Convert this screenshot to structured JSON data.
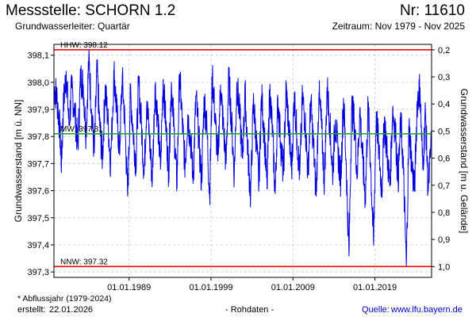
{
  "header": {
    "title": "Messstelle: SCHORN 1.2",
    "number": "Nr: 11610",
    "aquifer": "Grundwasserleiter: Quartär",
    "period": "Zeitraum: Nov 1979 - Nov 2025"
  },
  "footer": {
    "footnote": "* Abflussjahr (1979-2024)",
    "created_label": "erstellt:",
    "created_value": "22.01.2026",
    "rawdata": "- Rohdaten -",
    "source_label": "Quelle:",
    "source_link": "www.lfu.bayern.de"
  },
  "colors": {
    "series": "#0000dd",
    "extreme_lines": "#ff0000",
    "mean_line": "#22aa22",
    "grid": "#cccccc"
  },
  "chart_data": {
    "type": "line",
    "title": "",
    "xlabel": "",
    "ylabel": "Grundwasserstand [m ü. NN]",
    "ylabel_right": "Grundwasserstand [m u. Gelände]",
    "x_range": [
      "1979-11-01",
      "2025-11-30"
    ],
    "ylim": [
      397.28,
      398.14
    ],
    "ylim_right": [
      1.04,
      0.18
    ],
    "grid": true,
    "x_ticks": [
      {
        "date": "1989-01-01",
        "label": "01.01.1989"
      },
      {
        "date": "1999-01-01",
        "label": "01.01.1999"
      },
      {
        "date": "2009-01-01",
        "label": "01.01.2009"
      },
      {
        "date": "2019-01-01",
        "label": "01.01.2019"
      }
    ],
    "y_ticks": [
      {
        "value": 397.3,
        "label": "397,3"
      },
      {
        "value": 397.4,
        "label": "397,4"
      },
      {
        "value": 397.5,
        "label": "397,5"
      },
      {
        "value": 397.6,
        "label": "397,6"
      },
      {
        "value": 397.7,
        "label": "397,7"
      },
      {
        "value": 397.8,
        "label": "397,8"
      },
      {
        "value": 397.9,
        "label": "397,9"
      },
      {
        "value": 398.0,
        "label": "398,0"
      },
      {
        "value": 398.1,
        "label": "398,1"
      }
    ],
    "y_ticks_right": [
      {
        "value": 0.2,
        "label": "0,2"
      },
      {
        "value": 0.3,
        "label": "0,3"
      },
      {
        "value": 0.4,
        "label": "0,4"
      },
      {
        "value": 0.5,
        "label": "0,5"
      },
      {
        "value": 0.6,
        "label": "0,6"
      },
      {
        "value": 0.7,
        "label": "0,7"
      },
      {
        "value": 0.8,
        "label": "0,8"
      },
      {
        "value": 0.9,
        "label": "0,9"
      },
      {
        "value": 1.0,
        "label": "1,0"
      }
    ],
    "reference_lines": [
      {
        "label": "HHW: 398.12",
        "value": 398.12
      },
      {
        "label": "MW: 397.81",
        "value": 397.81
      },
      {
        "label": "NNW: 397.32",
        "value": 397.32
      }
    ],
    "series": [
      {
        "values": [
          [
            "1979-11-15",
            397.98
          ],
          [
            "1980-03-01",
            397.95
          ],
          [
            "1980-07-01",
            397.85
          ],
          [
            "1980-10-01",
            397.7
          ],
          [
            "1981-01-01",
            397.92
          ],
          [
            "1981-05-01",
            398.04
          ],
          [
            "1981-09-01",
            397.84
          ],
          [
            "1982-01-01",
            397.98
          ],
          [
            "1982-06-01",
            397.88
          ],
          [
            "1982-10-01",
            397.76
          ],
          [
            "1983-02-01",
            398.02
          ],
          [
            "1983-06-01",
            397.99
          ],
          [
            "1983-10-01",
            397.81
          ],
          [
            "1984-02-01",
            398.09
          ],
          [
            "1984-06-01",
            397.9
          ],
          [
            "1984-10-01",
            397.74
          ],
          [
            "1985-02-01",
            398.05
          ],
          [
            "1985-06-01",
            397.84
          ],
          [
            "1985-10-01",
            397.72
          ],
          [
            "1986-02-01",
            397.98
          ],
          [
            "1986-06-01",
            397.86
          ],
          [
            "1986-10-01",
            397.7
          ],
          [
            "1987-03-01",
            398.04
          ],
          [
            "1987-07-01",
            397.89
          ],
          [
            "1987-11-01",
            397.74
          ],
          [
            "1988-03-01",
            398.02
          ],
          [
            "1988-07-01",
            397.84
          ],
          [
            "1988-11-01",
            397.58
          ],
          [
            "1989-03-01",
            397.96
          ],
          [
            "1989-07-01",
            397.82
          ],
          [
            "1989-11-01",
            397.7
          ],
          [
            "1990-03-01",
            398.0
          ],
          [
            "1990-07-01",
            397.85
          ],
          [
            "1990-11-01",
            397.66
          ],
          [
            "1991-03-01",
            397.93
          ],
          [
            "1991-07-01",
            397.79
          ],
          [
            "1991-11-01",
            397.64
          ],
          [
            "1992-03-01",
            397.99
          ],
          [
            "1992-07-01",
            397.86
          ],
          [
            "1992-11-01",
            397.68
          ],
          [
            "1993-03-01",
            398.01
          ],
          [
            "1993-07-01",
            397.84
          ],
          [
            "1993-11-01",
            397.67
          ],
          [
            "1994-03-01",
            398.0
          ],
          [
            "1994-07-01",
            397.82
          ],
          [
            "1994-11-01",
            397.62
          ],
          [
            "1995-03-01",
            398.03
          ],
          [
            "1995-07-01",
            397.85
          ],
          [
            "1995-11-01",
            397.69
          ],
          [
            "1996-03-01",
            397.88
          ],
          [
            "1996-07-01",
            397.79
          ],
          [
            "1996-11-01",
            397.65
          ],
          [
            "1997-03-01",
            397.95
          ],
          [
            "1997-07-01",
            397.8
          ],
          [
            "1997-11-01",
            397.63
          ],
          [
            "1998-03-01",
            397.94
          ],
          [
            "1998-07-01",
            397.83
          ],
          [
            "1998-11-01",
            397.58
          ],
          [
            "1999-03-01",
            398.03
          ],
          [
            "1999-07-01",
            397.87
          ],
          [
            "1999-11-01",
            397.71
          ],
          [
            "2000-03-01",
            397.99
          ],
          [
            "2000-07-01",
            397.84
          ],
          [
            "2000-11-01",
            397.7
          ],
          [
            "2001-03-01",
            398.02
          ],
          [
            "2001-07-01",
            397.86
          ],
          [
            "2001-11-01",
            397.66
          ],
          [
            "2002-03-01",
            398.0
          ],
          [
            "2002-07-01",
            397.88
          ],
          [
            "2002-11-01",
            397.72
          ],
          [
            "2003-03-01",
            397.96
          ],
          [
            "2003-07-01",
            397.74
          ],
          [
            "2003-11-01",
            397.58
          ],
          [
            "2004-03-01",
            397.93
          ],
          [
            "2004-07-01",
            397.8
          ],
          [
            "2004-11-01",
            397.62
          ],
          [
            "2005-03-01",
            397.95
          ],
          [
            "2005-07-01",
            397.81
          ],
          [
            "2005-11-01",
            397.61
          ],
          [
            "2006-03-01",
            397.97
          ],
          [
            "2006-07-01",
            397.82
          ],
          [
            "2006-11-01",
            397.59
          ],
          [
            "2007-03-01",
            397.94
          ],
          [
            "2007-07-01",
            397.78
          ],
          [
            "2007-11-01",
            397.66
          ],
          [
            "2008-03-01",
            397.98
          ],
          [
            "2008-07-01",
            397.83
          ],
          [
            "2008-11-01",
            397.67
          ],
          [
            "2009-03-01",
            397.96
          ],
          [
            "2009-07-01",
            397.79
          ],
          [
            "2009-11-01",
            397.66
          ],
          [
            "2010-03-01",
            397.95
          ],
          [
            "2010-07-01",
            397.85
          ],
          [
            "2010-11-01",
            397.66
          ],
          [
            "2011-03-01",
            397.93
          ],
          [
            "2011-07-01",
            397.77
          ],
          [
            "2011-11-01",
            397.58
          ],
          [
            "2012-03-01",
            397.96
          ],
          [
            "2012-07-01",
            397.83
          ],
          [
            "2012-11-01",
            397.63
          ],
          [
            "2013-03-01",
            397.98
          ],
          [
            "2013-07-01",
            397.85
          ],
          [
            "2013-11-01",
            397.66
          ],
          [
            "2014-03-01",
            397.86
          ],
          [
            "2014-07-01",
            397.74
          ],
          [
            "2014-11-01",
            397.64
          ],
          [
            "2015-03-01",
            397.94
          ],
          [
            "2015-07-01",
            397.7
          ],
          [
            "2015-11-01",
            397.36
          ],
          [
            "2016-03-01",
            397.91
          ],
          [
            "2016-07-01",
            397.85
          ],
          [
            "2016-11-01",
            397.66
          ],
          [
            "2017-03-01",
            397.9
          ],
          [
            "2017-07-01",
            397.72
          ],
          [
            "2017-11-01",
            397.57
          ],
          [
            "2018-03-01",
            397.92
          ],
          [
            "2018-07-01",
            397.68
          ],
          [
            "2018-11-01",
            397.4
          ],
          [
            "2019-03-01",
            397.89
          ],
          [
            "2019-07-01",
            397.74
          ],
          [
            "2019-11-01",
            397.6
          ],
          [
            "2020-03-01",
            397.87
          ],
          [
            "2020-07-01",
            397.73
          ],
          [
            "2020-11-01",
            397.62
          ],
          [
            "2021-03-01",
            397.9
          ],
          [
            "2021-07-01",
            397.82
          ],
          [
            "2021-11-01",
            397.64
          ],
          [
            "2022-03-01",
            397.86
          ],
          [
            "2022-07-01",
            397.66
          ],
          [
            "2022-11-01",
            397.32
          ],
          [
            "2023-03-01",
            397.84
          ],
          [
            "2023-07-01",
            397.7
          ],
          [
            "2023-11-01",
            397.6
          ],
          [
            "2024-03-01",
            397.93
          ],
          [
            "2024-07-01",
            397.98
          ],
          [
            "2024-11-01",
            397.68
          ],
          [
            "2025-03-01",
            397.89
          ],
          [
            "2025-07-01",
            397.6
          ],
          [
            "2025-11-15",
            397.77
          ]
        ]
      }
    ]
  }
}
